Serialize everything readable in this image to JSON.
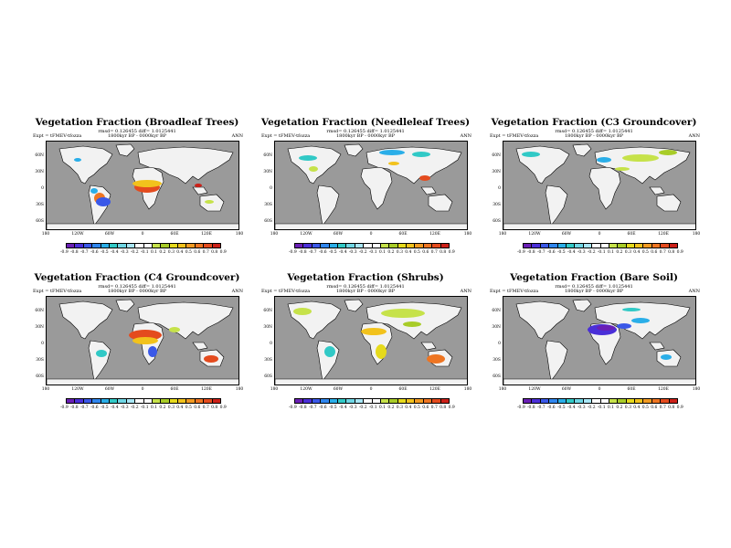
{
  "figure": {
    "season": "ANN",
    "expt": "Expt = tFMEV-tfozza",
    "epoch": "1800kyr BP - 0000kyr BP",
    "lat_labels": [
      "60N",
      "30N",
      "0",
      "30S",
      "60S"
    ],
    "lon_labels": [
      "180",
      "120W",
      "60W",
      "0",
      "60E",
      "120E",
      "180"
    ],
    "colorbar_ticks": [
      "-0.9",
      "-0.8",
      "-0.7",
      "-0.6",
      "-0.5",
      "-0.4",
      "-0.3",
      "-0.2",
      "-0.1",
      "0.1",
      "0.2",
      "0.3",
      "0.4",
      "0.5",
      "0.6",
      "0.7",
      "0.8",
      "0.9"
    ],
    "colorbar_colors": [
      "#6a1fb5",
      "#4a2fd8",
      "#3a58e8",
      "#2f86ee",
      "#2aaee8",
      "#31c9c6",
      "#6fd6e4",
      "#a9e6f5",
      "#ffffff",
      "#ffffff",
      "#c6e24a",
      "#a8cc28",
      "#e6da1c",
      "#f2c21c",
      "#f29a22",
      "#ee7522",
      "#e44b1e",
      "#cc2018"
    ]
  },
  "panels": [
    {
      "title": "Vegetation Fraction (Broadleaf Trees)",
      "stats": "rmsd= 0.126455 diff= 1.0125441"
    },
    {
      "title": "Vegetation Fraction (Needleleaf Trees)",
      "stats": "rmsd= 0.126455 diff= 1.0125441"
    },
    {
      "title": "Vegetation Fraction (C3 Groundcover)",
      "stats": "rmsd= 0.126455 diff= 1.0125441"
    },
    {
      "title": "Vegetation Fraction (C4 Groundcover)",
      "stats": "rmsd= 0.126455 diff= 1.0125441"
    },
    {
      "title": "Vegetation Fraction (Shrubs)",
      "stats": "rmsd= 0.126455 diff= 1.0125441"
    },
    {
      "title": "Vegetation Fraction (Bare Soil)",
      "stats": "rmsd= 0.126455 diff= 1.0125441"
    }
  ]
}
